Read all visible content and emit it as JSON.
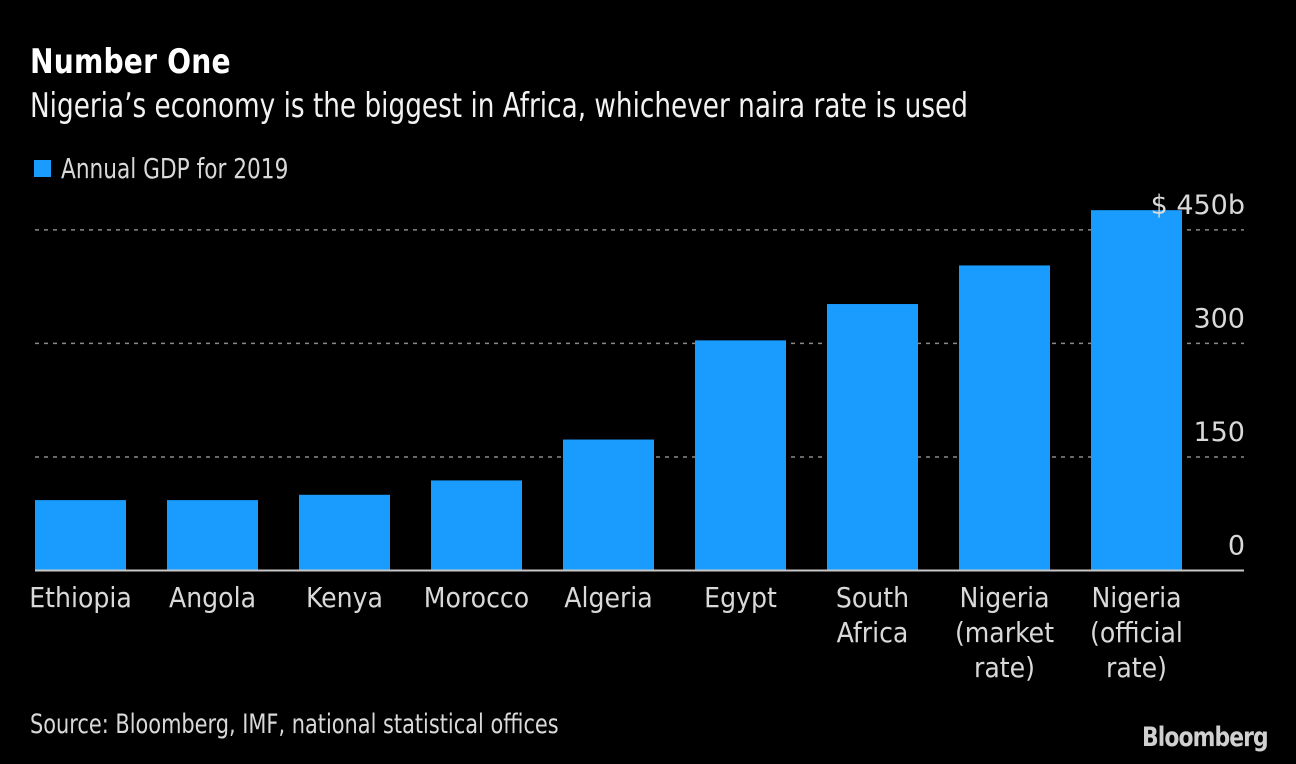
{
  "header": {
    "title": "Number One",
    "subtitle": "Nigeria’s economy is the biggest in Africa, whichever naira rate is used"
  },
  "legend": {
    "label": "Annual GDP for 2019",
    "color": "#1a9cff"
  },
  "footer": {
    "source": "Source: Bloomberg, IMF, national statistical offices",
    "logo": "Bloomberg"
  },
  "chart_data": {
    "type": "bar",
    "title": "Number One",
    "subtitle": "Nigeria’s economy is the biggest in Africa, whichever naira rate is used",
    "xlabel": "",
    "ylabel": "",
    "ylim": [
      0,
      475
    ],
    "yticks": [
      0,
      150,
      300,
      450
    ],
    "ytick_labels": [
      "0",
      "150",
      "300",
      "$ 450b"
    ],
    "y_axis_position": "right",
    "grid": true,
    "legend_position": "top-left",
    "categories": [
      [
        "Ethiopia"
      ],
      [
        "Angola"
      ],
      [
        "Kenya"
      ],
      [
        "Morocco"
      ],
      [
        "Algeria"
      ],
      [
        "Egypt"
      ],
      [
        "South",
        "Africa"
      ],
      [
        "Nigeria",
        "(market",
        "rate)"
      ],
      [
        "Nigeria",
        "(official",
        "rate)"
      ]
    ],
    "series": [
      {
        "name": "Annual GDP for 2019",
        "color": "#1a9cff",
        "values": [
          93,
          93,
          100,
          119,
          173,
          304,
          352,
          403,
          476
        ]
      }
    ]
  }
}
